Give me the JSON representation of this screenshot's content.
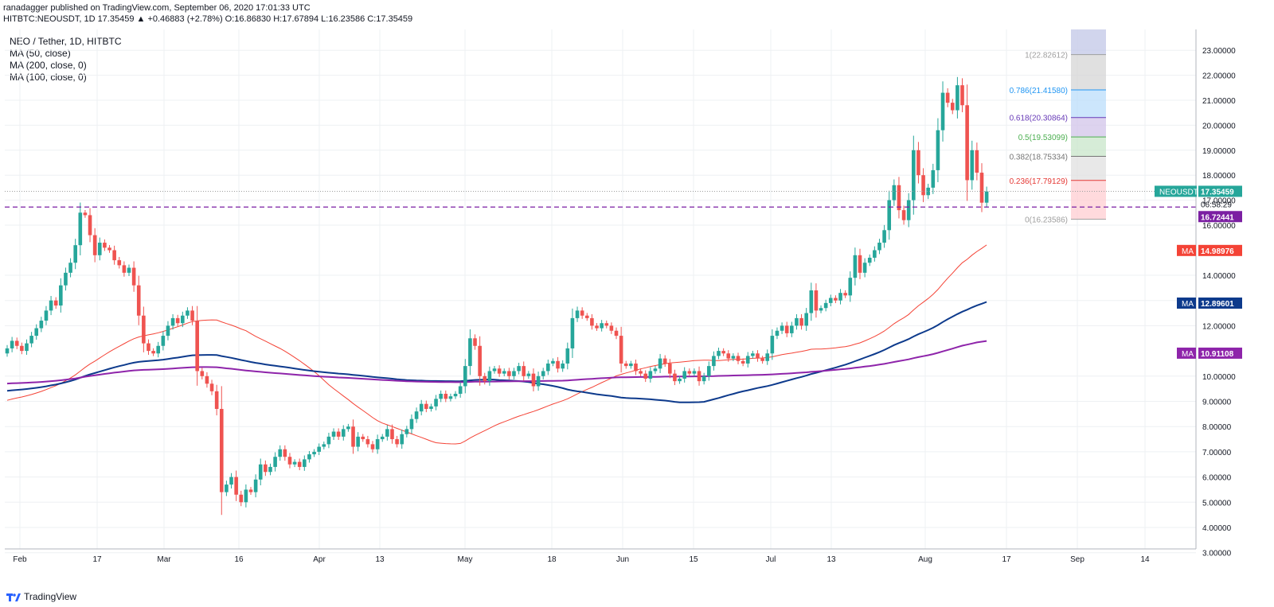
{
  "header": {
    "publish_line": "ranadagger published on TradingView.com, September 06, 2020 17:01:33 UTC",
    "ohlc_line": "HITBTC:NEOUSDT, 1D 17.35459 ▲ +0.46883 (+2.78%) O:16.86830 H:17.67894 L:16.23586 C:17.35459"
  },
  "legend": {
    "title": "NEO / Tether, 1D, HITBTC",
    "ma1": "MA (50, close)",
    "ma2": "MA (200, close, 0)",
    "ma3": "MA (100, close, 0)"
  },
  "footer": {
    "brand": "TradingView"
  },
  "colors": {
    "up": "#26a69a",
    "down": "#ef5350",
    "ma50": "#f44336",
    "ma100": "#0d3a8c",
    "ma200": "#8e24aa",
    "hline": "#7b1fa2",
    "grid": "#eef0f3"
  },
  "chart_data": {
    "type": "candlestick",
    "symbol": "NEOUSDT",
    "x_tick_labels": [
      "Feb",
      "17",
      "Mar",
      "16",
      "Apr",
      "13",
      "May",
      "18",
      "Jun",
      "15",
      "Jul",
      "13",
      "Aug",
      "17",
      "Sep",
      "14"
    ],
    "y_tick_labels": [
      "23.00000",
      "22.00000",
      "21.00000",
      "20.00000",
      "19.00000",
      "18.00000",
      "17.00000",
      "16.00000",
      "14.00000",
      "13.00000",
      "12.00000",
      "10.00000",
      "9.00000",
      "8.00000",
      "7.00000",
      "6.00000",
      "5.00000",
      "4.00000",
      "3.00000"
    ],
    "last_price": 17.35459,
    "last_price_label": "NEOUSDT",
    "last_price_text": "17.35459",
    "countdown": "06:58:29",
    "horizontal_line": 16.72441,
    "horizontal_line_text": "16.72441",
    "ma_labels": [
      {
        "label": "MA",
        "value": 14.98976,
        "text": "14.98976",
        "series": "ma50"
      },
      {
        "label": "MA",
        "value": 12.89601,
        "text": "12.89601",
        "series": "ma100"
      },
      {
        "label": "MA",
        "value": 10.91108,
        "text": "10.91108",
        "series": "ma200"
      }
    ],
    "fib_levels": [
      {
        "ratio": 1,
        "price": 22.82612,
        "label": "1(22.82612)"
      },
      {
        "ratio": 0.786,
        "price": 21.4158,
        "label": "0.786(21.41580)"
      },
      {
        "ratio": 0.618,
        "price": 20.30864,
        "label": "0.618(20.30864)"
      },
      {
        "ratio": 0.5,
        "price": 19.53099,
        "label": "0.5(19.53099)"
      },
      {
        "ratio": 0.382,
        "price": 18.75334,
        "label": "0.382(18.75334)"
      },
      {
        "ratio": 0.236,
        "price": 17.79129,
        "label": "0.236(17.79129)"
      },
      {
        "ratio": 0,
        "price": 16.23586,
        "label": "0(16.23586)"
      }
    ],
    "candles_close": [
      11.1,
      11.4,
      11.2,
      11.0,
      11.3,
      11.6,
      11.9,
      12.2,
      12.6,
      13.0,
      12.8,
      13.6,
      14.1,
      14.5,
      15.2,
      16.5,
      16.4,
      15.6,
      14.8,
      15.3,
      15.1,
      15.0,
      14.6,
      14.4,
      14.1,
      14.3,
      13.6,
      12.4,
      11.3,
      11.0,
      10.9,
      11.2,
      11.6,
      12.0,
      12.3,
      12.1,
      12.4,
      12.6,
      12.2,
      10.2,
      10.0,
      9.7,
      9.4,
      8.7,
      5.4,
      5.7,
      6.0,
      5.3,
      5.0,
      5.5,
      5.4,
      5.9,
      6.5,
      6.2,
      6.4,
      6.8,
      7.1,
      6.8,
      6.5,
      6.6,
      6.4,
      6.7,
      6.9,
      7.0,
      7.2,
      7.3,
      7.6,
      7.8,
      7.6,
      7.9,
      8.0,
      7.2,
      7.6,
      7.5,
      7.3,
      7.1,
      7.5,
      7.6,
      7.9,
      7.5,
      7.3,
      7.7,
      7.9,
      8.3,
      8.6,
      8.9,
      8.7,
      8.8,
      9.1,
      9.3,
      9.1,
      9.2,
      9.3,
      9.6,
      10.4,
      11.5,
      11.2,
      10.0,
      9.8,
      10.2,
      10.3,
      10.1,
      10.2,
      10.0,
      10.2,
      10.4,
      10.0,
      10.1,
      9.6,
      10.0,
      10.2,
      10.5,
      10.6,
      10.3,
      10.5,
      11.1,
      12.3,
      12.6,
      12.4,
      12.3,
      12.0,
      11.9,
      12.1,
      12.0,
      11.8,
      11.6,
      10.5,
      10.4,
      10.5,
      10.2,
      10.1,
      9.9,
      10.2,
      10.3,
      10.7,
      10.5,
      10.1,
      9.8,
      9.9,
      10.2,
      10.1,
      10.2,
      9.8,
      10.0,
      10.4,
      10.8,
      11.0,
      10.9,
      10.7,
      10.8,
      10.6,
      10.5,
      10.8,
      10.9,
      10.7,
      10.6,
      10.9,
      11.6,
      11.8,
      12.0,
      11.7,
      12.0,
      12.3,
      12.0,
      12.5,
      13.4,
      12.6,
      12.7,
      12.9,
      13.1,
      13.0,
      13.3,
      13.2,
      13.9,
      14.8,
      14.1,
      14.5,
      14.7,
      15.0,
      15.3,
      15.8,
      17.0,
      17.6,
      16.6,
      16.2,
      17.0,
      19.0,
      18.0,
      17.2,
      17.5,
      18.2,
      19.8,
      21.3,
      20.9,
      20.6,
      21.6,
      20.8,
      17.8,
      19.0,
      18.1,
      16.9,
      17.35
    ]
  }
}
